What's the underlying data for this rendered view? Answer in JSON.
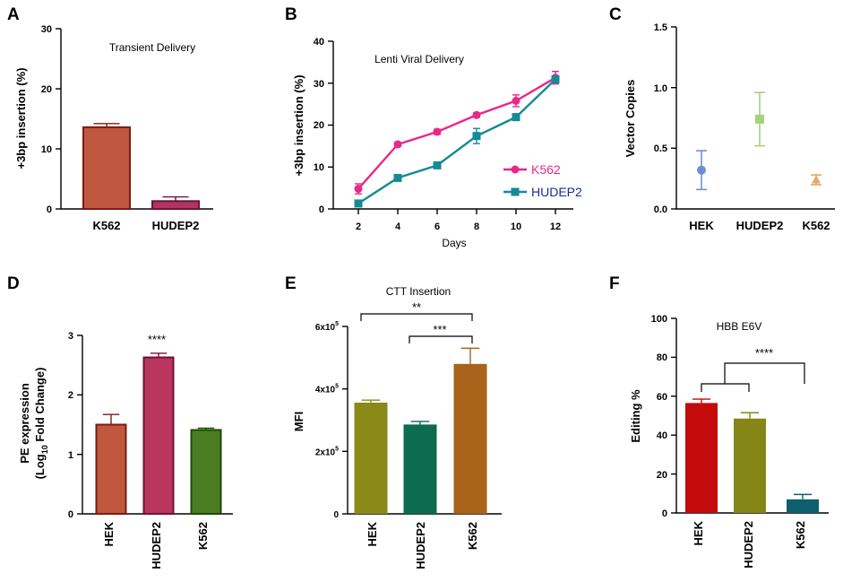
{
  "chart_data": [
    {
      "panel": "A",
      "type": "bar",
      "title": "Transient Delivery",
      "ylabel": "+3bp insertion (%)",
      "xlabel": "",
      "ylim": [
        0,
        30
      ],
      "yticks": [
        "0",
        "10",
        "20",
        "30"
      ],
      "ytick_values": [
        0,
        10,
        20,
        30
      ],
      "categories": [
        "K562",
        "HUDEP2"
      ],
      "values": [
        13.6,
        1.3
      ],
      "errors": [
        0.6,
        0.7
      ],
      "colors": [
        "#c0583f",
        "#b03562"
      ],
      "edge_colors": [
        "#7a1c12",
        "#6f1235"
      ]
    },
    {
      "panel": "B",
      "type": "line",
      "title": "Lenti Viral Delivery",
      "ylabel": "+3bp insertion (%)",
      "xlabel": "Days",
      "ylim": [
        0,
        40
      ],
      "yticks": [
        "0",
        "10",
        "20",
        "30",
        "40"
      ],
      "ytick_values": [
        0,
        10,
        20,
        30,
        40
      ],
      "x": [
        2,
        4,
        6,
        8,
        10,
        12
      ],
      "xticks": [
        "2",
        "4",
        "6",
        "8",
        "10",
        "12"
      ],
      "series": [
        {
          "name": "K562",
          "color": "#e8288a",
          "marker": "circle",
          "values": [
            4.8,
            15.4,
            18.4,
            22.4,
            25.8,
            31.3
          ],
          "errors": [
            1.2,
            0.5,
            0.6,
            0.5,
            1.4,
            1.5
          ]
        },
        {
          "name": "HUDEP2",
          "color": "#138a96",
          "marker": "square",
          "values": [
            1.3,
            7.4,
            10.4,
            17.4,
            21.9,
            30.9
          ],
          "errors": [
            0.4,
            0.4,
            0.4,
            1.8,
            0.8,
            0.8
          ]
        }
      ]
    },
    {
      "panel": "C",
      "type": "scatter",
      "title": "",
      "ylabel": "Vector Copies",
      "xlabel": "",
      "ylim": [
        0,
        1.5
      ],
      "yticks": [
        "0.0",
        "0.5",
        "1.0",
        "1.5"
      ],
      "ytick_values": [
        0,
        0.5,
        1.0,
        1.5
      ],
      "categories": [
        "HEK",
        "HUDEP2",
        "K562"
      ],
      "values": [
        0.32,
        0.74,
        0.24
      ],
      "errors": [
        0.16,
        0.22,
        0.04
      ],
      "colors": [
        "#6d8fd6",
        "#a5d279",
        "#e8a567"
      ],
      "markers": [
        "circle",
        "square",
        "triangle"
      ]
    },
    {
      "panel": "D",
      "type": "bar",
      "title": "",
      "ylabel_line1": "PE expression",
      "ylabel_line2": "(Log",
      "ylabel_sub": "10",
      "ylabel_line3": " Fold Change)",
      "ylim": [
        0,
        3
      ],
      "yticks": [
        "0",
        "1",
        "2",
        "3"
      ],
      "ytick_values": [
        0,
        1,
        2,
        3
      ],
      "categories": [
        "HEK",
        "HUDEP2",
        "K562"
      ],
      "values": [
        1.5,
        2.63,
        1.41
      ],
      "errors": [
        0.17,
        0.07,
        0.03
      ],
      "colors": [
        "#c0583f",
        "#b8365f",
        "#4a7d22"
      ],
      "edge_colors": [
        "#7a1c12",
        "#6f1235",
        "#1f4a0a"
      ],
      "annotation": {
        "text": "****",
        "category": "HUDEP2"
      }
    },
    {
      "panel": "E",
      "type": "bar",
      "title": "CTT Insertion",
      "ylabel": "MFI",
      "ylim": [
        0,
        600000
      ],
      "ytick_values": [
        0,
        200000,
        400000,
        600000
      ],
      "ytick_labels": [
        {
          "base": "0",
          "exp": ""
        },
        {
          "base": "2x10",
          "exp": "5"
        },
        {
          "base": "4x10",
          "exp": "5"
        },
        {
          "base": "6x10",
          "exp": "5"
        }
      ],
      "categories": [
        "HEK",
        "HUDEP2",
        "K562"
      ],
      "values": [
        356000,
        286000,
        480000
      ],
      "errors": [
        8000,
        10000,
        50000
      ],
      "colors": [
        "#8a8a18",
        "#0d6b4e",
        "#a8621a"
      ],
      "brackets": [
        {
          "from": "HEK",
          "to": "K562",
          "label": "**"
        },
        {
          "from": "HUDEP2",
          "to": "K562",
          "label": "***"
        }
      ]
    },
    {
      "panel": "F",
      "type": "bar",
      "title": "HBB E6V",
      "ylabel": "Editing %",
      "ylim": [
        0,
        100
      ],
      "yticks": [
        "0",
        "20",
        "40",
        "60",
        "80",
        "100"
      ],
      "ytick_values": [
        0,
        20,
        40,
        60,
        80,
        100
      ],
      "categories": [
        "HEK",
        "HUDEP2",
        "K562"
      ],
      "values": [
        56.5,
        48.5,
        7
      ],
      "errors": [
        2,
        3,
        2.5
      ],
      "colors": [
        "#c40a0a",
        "#868618",
        "#0e5f6e"
      ],
      "significance": {
        "label": "****",
        "group": [
          "HEK",
          "HUDEP2"
        ],
        "vs": "K562"
      }
    }
  ]
}
